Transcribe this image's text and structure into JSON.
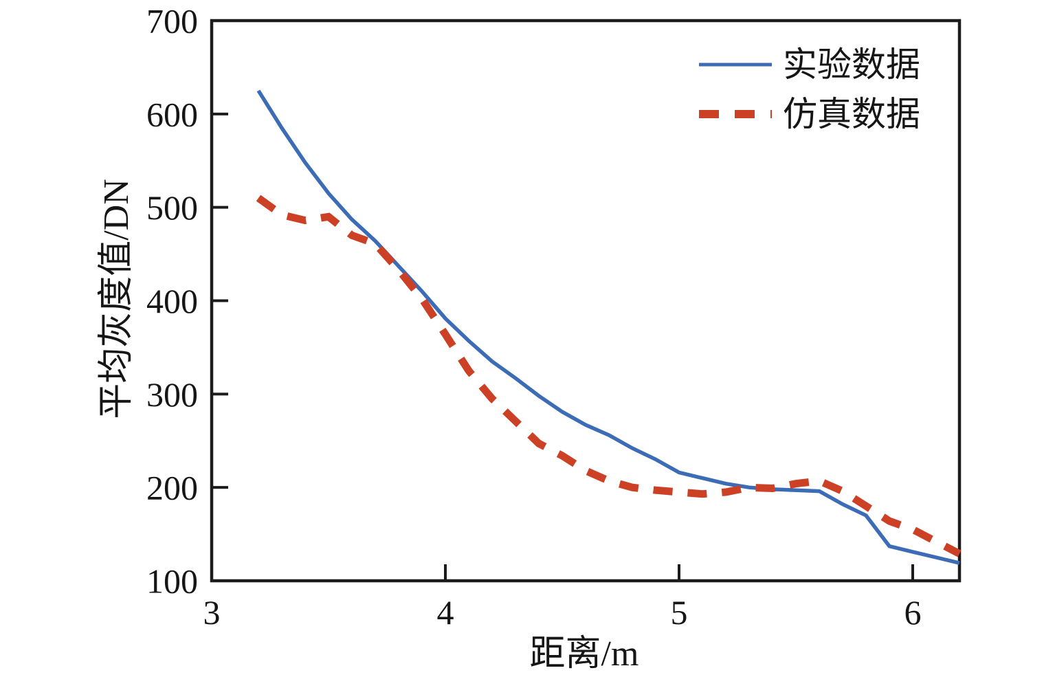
{
  "chart_data": {
    "type": "line",
    "title": "",
    "xlabel": "距离/m",
    "ylabel": "平均灰度值/DN",
    "xlim": [
      3,
      6.2
    ],
    "ylim": [
      100,
      700
    ],
    "x_ticks": [
      3,
      4,
      5,
      6
    ],
    "x_tick_labels": [
      "3",
      "4",
      "5",
      "6"
    ],
    "y_ticks": [
      100,
      200,
      300,
      400,
      500,
      600,
      700
    ],
    "y_tick_labels": [
      "100",
      "200",
      "300",
      "400",
      "500",
      "600",
      "700"
    ],
    "grid": false,
    "legend_position": "upper-right-inside",
    "frame_color": "#1c1c1c",
    "x": [
      3.2,
      3.3,
      3.4,
      3.5,
      3.6,
      3.7,
      3.8,
      3.9,
      4.0,
      4.1,
      4.2,
      4.3,
      4.4,
      4.5,
      4.6,
      4.7,
      4.8,
      4.9,
      5.0,
      5.1,
      5.2,
      5.3,
      5.4,
      5.5,
      5.6,
      5.7,
      5.8,
      5.9,
      6.0,
      6.1,
      6.2
    ],
    "series": [
      {
        "name": "实验数据",
        "style": "solid",
        "color": "#3c6cb5",
        "line_width": 5.5,
        "values": [
          625,
          585,
          548,
          515,
          487,
          464,
          437,
          410,
          381,
          357,
          335,
          317,
          298,
          281,
          267,
          256,
          242,
          230,
          216,
          210,
          204,
          200,
          198,
          197,
          196,
          182,
          170,
          137,
          131,
          125,
          119
        ]
      },
      {
        "name": "仿真数据",
        "style": "dashed",
        "color": "#cc4125",
        "line_width": 11,
        "values": [
          510,
          492,
          486,
          490,
          470,
          461,
          433,
          402,
          364,
          325,
          295,
          271,
          247,
          234,
          218,
          207,
          200,
          197,
          195,
          193,
          195,
          200,
          199,
          204,
          207,
          196,
          180,
          164,
          155,
          142,
          129
        ]
      }
    ]
  }
}
